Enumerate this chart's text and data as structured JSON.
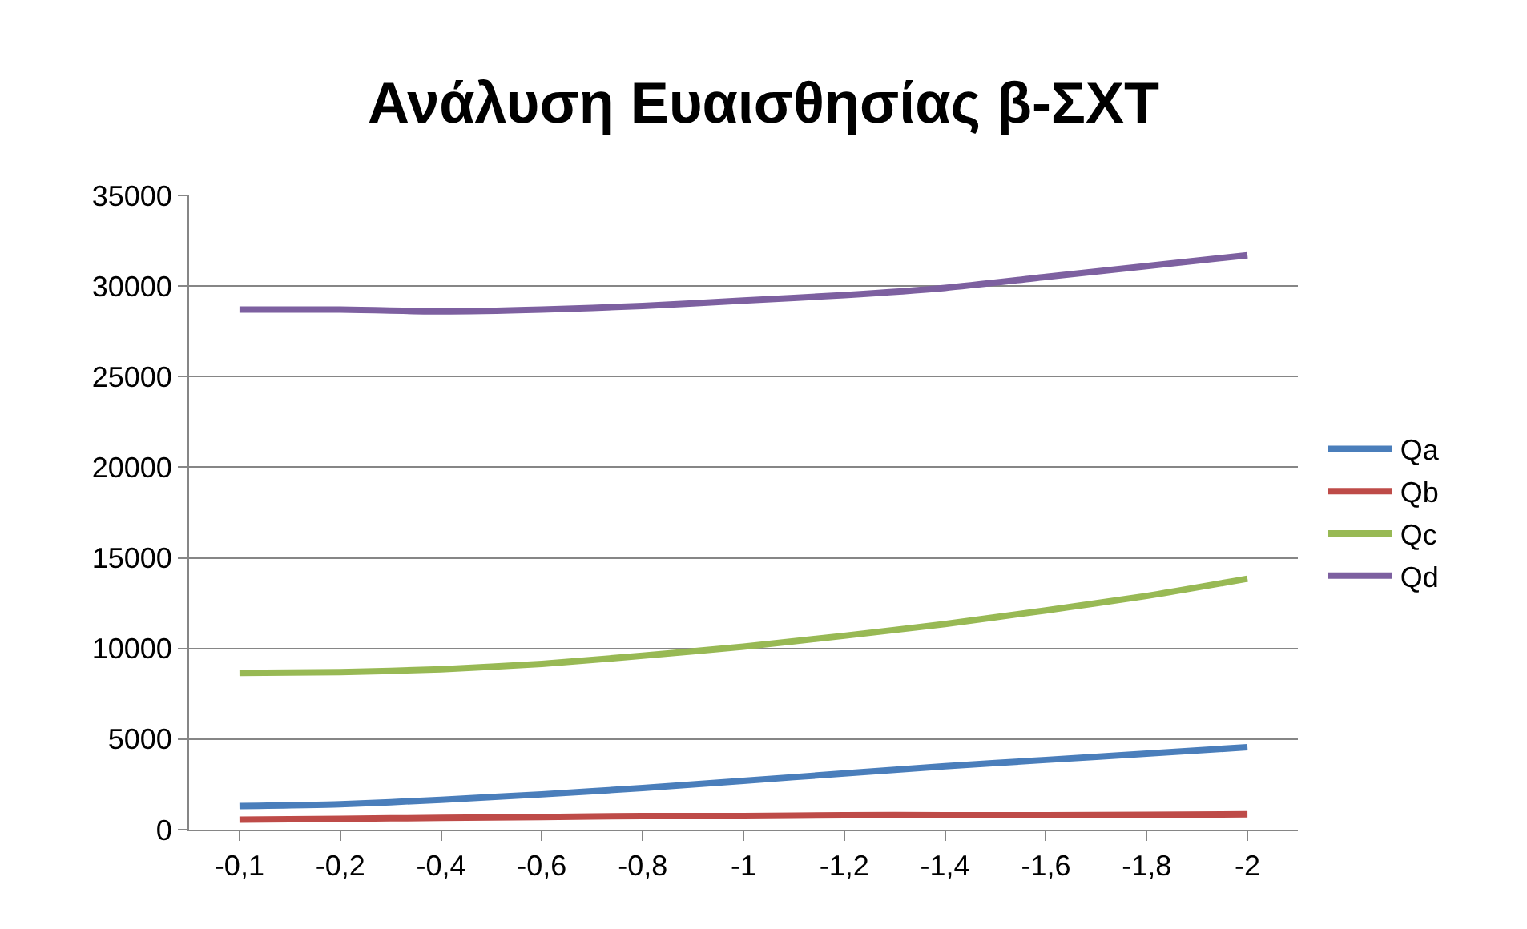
{
  "chart_data": {
    "type": "line",
    "title": "Ανάλυση Ευαισθησίας β-ΣΧΤ",
    "categories": [
      "-0,1",
      "-0,2",
      "-0,4",
      "-0,6",
      "-0,8",
      "-1",
      "-1,2",
      "-1,4",
      "-1,6",
      "-1,8",
      "-2"
    ],
    "series": [
      {
        "name": "Qa",
        "color": "#4a7ebb",
        "values": [
          1300,
          1400,
          1650,
          1950,
          2300,
          2700,
          3100,
          3500,
          3850,
          4200,
          4550
        ]
      },
      {
        "name": "Qb",
        "color": "#be4b48",
        "values": [
          550,
          600,
          650,
          700,
          750,
          750,
          800,
          800,
          800,
          820,
          850
        ]
      },
      {
        "name": "Qc",
        "color": "#98b954",
        "values": [
          8650,
          8700,
          8850,
          9150,
          9600,
          10100,
          10700,
          11350,
          12100,
          12900,
          13850
        ]
      },
      {
        "name": "Qd",
        "color": "#7d60a0",
        "values": [
          28700,
          28700,
          28600,
          28700,
          28900,
          29200,
          29500,
          29900,
          30500,
          31100,
          31700
        ]
      }
    ],
    "ylim": [
      0,
      35000
    ],
    "yticks": [
      0,
      5000,
      10000,
      15000,
      20000,
      25000,
      30000,
      35000
    ],
    "grid": "y",
    "legend": "right",
    "marker": "none",
    "line_style": "solid"
  }
}
